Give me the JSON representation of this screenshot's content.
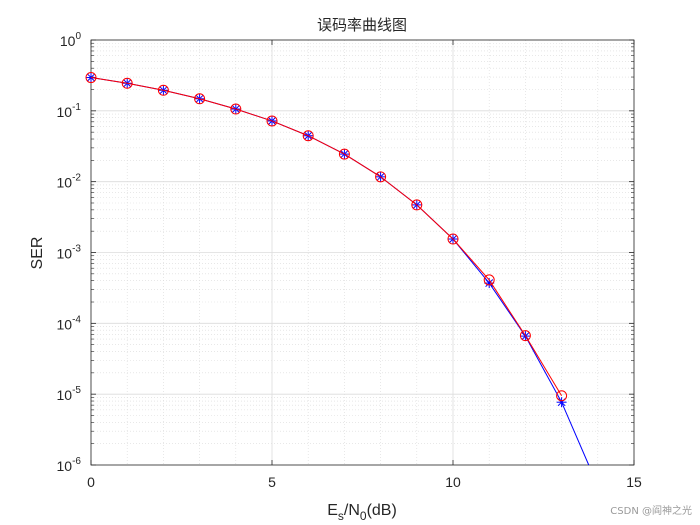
{
  "chart_data": {
    "type": "line",
    "title": "误码率曲线图",
    "xlabel": {
      "main": "E",
      "sub1": "s",
      "mid": "/N",
      "sub2": "0",
      "tail": "(dB)"
    },
    "ylabel": "SER",
    "xlim": [
      0,
      15
    ],
    "ylim": [
      1e-06,
      1
    ],
    "yscale": "log",
    "grid": true,
    "minor_grid": true,
    "x_ticks": [
      0,
      5,
      10,
      15
    ],
    "y_ticks": [
      {
        "value": 1,
        "base": "10",
        "exp": "0"
      },
      {
        "value": 0.1,
        "base": "10",
        "exp": "-1"
      },
      {
        "value": 0.01,
        "base": "10",
        "exp": "-2"
      },
      {
        "value": 0.001,
        "base": "10",
        "exp": "-3"
      },
      {
        "value": 0.0001,
        "base": "10",
        "exp": "-4"
      },
      {
        "value": 1e-05,
        "base": "10",
        "exp": "-5"
      },
      {
        "value": 1e-06,
        "base": "10",
        "exp": "-6"
      }
    ],
    "series": [
      {
        "color": "#0000ff",
        "marker": "asterisk",
        "x": [
          0,
          1,
          2,
          3,
          4,
          5,
          6,
          7,
          8,
          9,
          10,
          11,
          12,
          13,
          13.75
        ],
        "y": [
          0.295,
          0.245,
          0.195,
          0.148,
          0.106,
          0.072,
          0.0445,
          0.0245,
          0.0117,
          0.0047,
          0.00155,
          0.00037,
          6.6e-05,
          7.7e-06,
          1e-06
        ],
        "marker_count": 14
      },
      {
        "color": "#ff0000",
        "marker": "circle",
        "x": [
          0,
          1,
          2,
          3,
          4,
          5,
          6,
          7,
          8,
          9,
          10,
          11,
          12,
          13
        ],
        "y": [
          0.295,
          0.245,
          0.195,
          0.148,
          0.106,
          0.072,
          0.0445,
          0.0245,
          0.0117,
          0.0047,
          0.00155,
          0.00041,
          6.7e-05,
          9.5e-06
        ],
        "marker_count": 14
      }
    ]
  },
  "watermark": "CSDN @阎神之光"
}
